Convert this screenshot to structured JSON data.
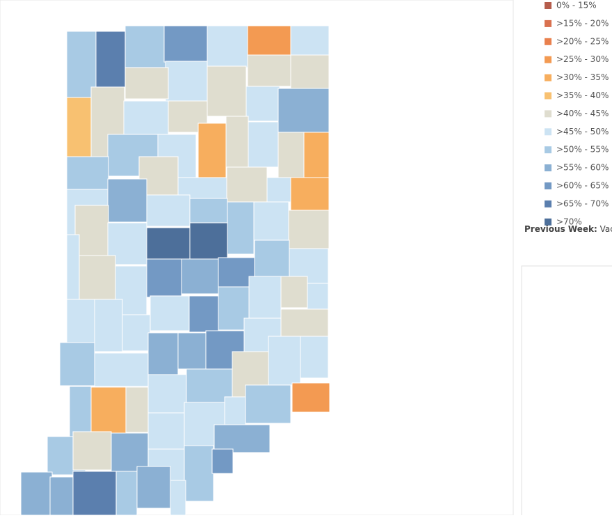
{
  "legend": {
    "items": [
      {
        "label": "0% - 15%",
        "color": "#b55d4c"
      },
      {
        "label": ">15% - 20%",
        "color": "#d9714f"
      },
      {
        "label": ">20% - 25%",
        "color": "#e9804d"
      },
      {
        "label": ">25% - 30%",
        "color": "#f39a52"
      },
      {
        "label": ">30% - 35%",
        "color": "#f7ae5e"
      },
      {
        "label": ">35% - 40%",
        "color": "#f8c171"
      },
      {
        "label": ">40% - 45%",
        "color": "#dfddcf"
      },
      {
        "label": ">45% - 50%",
        "color": "#cce3f3"
      },
      {
        "label": ">50% - 55%",
        "color": "#a8cae4"
      },
      {
        "label": ">55% - 60%",
        "color": "#8bb0d3"
      },
      {
        "label": ">60% - 65%",
        "color": "#7399c4"
      },
      {
        "label": ">65% - 70%",
        "color": "#5b7fae"
      },
      {
        "label": ">70%",
        "color": "#4d6f9a"
      }
    ]
  },
  "filter": {
    "label": "Previous Week:",
    "value": "Vac"
  }
}
